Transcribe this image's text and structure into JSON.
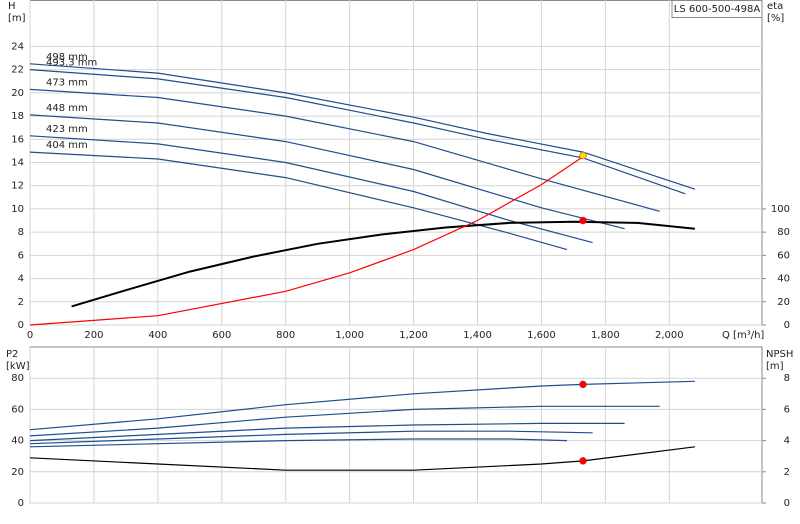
{
  "chart_data": [
    {
      "type": "line",
      "title": "LS 600-500-498A",
      "xlabel": "Q [m³/h]",
      "ylabel": "H",
      "yunit": "[m]",
      "y2label": "eta",
      "y2unit": "[%]",
      "xlim": [
        0,
        2290
      ],
      "xticks": [
        0,
        200,
        400,
        600,
        800,
        {
          "value": 1000,
          "label": "1,000"
        },
        {
          "value": 1200,
          "label": "1,200"
        },
        {
          "value": 1400,
          "label": "1,400"
        },
        {
          "value": 1600,
          "label": "1,600"
        },
        {
          "value": 1800,
          "label": "1,800"
        },
        {
          "value": 2000,
          "label": "2,000"
        }
      ],
      "ylim": [
        0,
        28
      ],
      "yticks": [
        0,
        2,
        4,
        6,
        8,
        10,
        12,
        14,
        16,
        18,
        20,
        22,
        24
      ],
      "y2lim": [
        0,
        280
      ],
      "y2ticks": [
        0,
        20,
        40,
        60,
        80,
        100
      ],
      "grid": true,
      "series": [
        {
          "name": "498 mm",
          "color": "#1f4e8c",
          "x": [
            0,
            400,
            800,
            1200,
            1430,
            1730,
            2080
          ],
          "values": [
            22.5,
            21.7,
            20.0,
            17.9,
            16.5,
            14.9,
            11.7
          ]
        },
        {
          "name": "493.3 mm",
          "color": "#1f4e8c",
          "x": [
            0,
            400,
            800,
            1200,
            1430,
            1730,
            2050
          ],
          "values": [
            22.0,
            21.2,
            19.6,
            17.4,
            16.0,
            14.4,
            11.3
          ]
        },
        {
          "name": "473 mm",
          "color": "#1f4e8c",
          "x": [
            0,
            400,
            800,
            1200,
            1600,
            1970
          ],
          "values": [
            20.3,
            19.6,
            18.0,
            15.8,
            12.6,
            9.8
          ]
        },
        {
          "name": "448 mm",
          "color": "#1f4e8c",
          "x": [
            0,
            400,
            800,
            1200,
            1600,
            1860
          ],
          "values": [
            18.1,
            17.4,
            15.8,
            13.4,
            10.1,
            8.3
          ]
        },
        {
          "name": "423 mm",
          "color": "#1f4e8c",
          "x": [
            0,
            400,
            800,
            1200,
            1500,
            1760
          ],
          "values": [
            16.3,
            15.6,
            14.0,
            11.5,
            9.0,
            7.1
          ]
        },
        {
          "name": "404 mm",
          "color": "#1f4e8c",
          "x": [
            0,
            400,
            800,
            1200,
            1500,
            1680
          ],
          "values": [
            14.9,
            14.3,
            12.7,
            10.1,
            7.9,
            6.5
          ]
        },
        {
          "color": "#000000",
          "axis": "y2",
          "x": [
            130,
            300,
            500,
            700,
            900,
            1100,
            1300,
            1500,
            1700,
            1900,
            2080
          ],
          "values": [
            16,
            30,
            46,
            59,
            70,
            78,
            84,
            88,
            89,
            88,
            83
          ]
        },
        {
          "color": "#ff0000",
          "x": [
            0,
            400,
            800,
            1000,
            1200,
            1400,
            1600,
            1730
          ],
          "values": [
            0,
            0.8,
            2.9,
            4.5,
            6.5,
            9.0,
            12.1,
            14.5
          ]
        }
      ],
      "points": [
        {
          "x": 1730,
          "y": 14.6,
          "color": "#ffd700"
        },
        {
          "x": 1730,
          "y": 90,
          "axis": "y2",
          "color": "#ff0000"
        }
      ]
    },
    {
      "type": "line",
      "ylabel": "P2",
      "yunit": "[kW]",
      "y2label": "NPSH",
      "y2unit": "[m]",
      "xlim": [
        0,
        2290
      ],
      "xticks": [
        0,
        200,
        400,
        600,
        800,
        1000,
        1200,
        1400,
        1600,
        1800,
        2000
      ],
      "ylim": [
        0,
        100
      ],
      "yticks": [
        0,
        20,
        40,
        60,
        80
      ],
      "y2lim": [
        0,
        10
      ],
      "y2ticks": [
        0,
        2,
        4,
        6,
        8
      ],
      "grid": true,
      "series": [
        {
          "color": "#1f4e8c",
          "x": [
            0,
            400,
            800,
            1200,
            1600,
            1730,
            2080
          ],
          "values": [
            47,
            54,
            63,
            70,
            75,
            76,
            78
          ]
        },
        {
          "color": "#1f4e8c",
          "x": [
            0,
            400,
            800,
            1200,
            1600,
            1970
          ],
          "values": [
            43,
            48,
            55,
            60,
            62,
            62
          ]
        },
        {
          "color": "#1f4e8c",
          "x": [
            0,
            400,
            800,
            1200,
            1600,
            1860
          ],
          "values": [
            40,
            44,
            48,
            50,
            51,
            51
          ]
        },
        {
          "color": "#1f4e8c",
          "x": [
            0,
            400,
            800,
            1200,
            1500,
            1760
          ],
          "values": [
            38,
            41,
            44,
            46,
            46,
            45
          ]
        },
        {
          "color": "#1f4e8c",
          "x": [
            0,
            400,
            800,
            1200,
            1500,
            1680
          ],
          "values": [
            36,
            38,
            40,
            41,
            41,
            40
          ]
        },
        {
          "color": "#000000",
          "axis": "y2",
          "x": [
            0,
            400,
            800,
            1200,
            1600,
            1730,
            2080
          ],
          "values": [
            2.9,
            2.5,
            2.1,
            2.1,
            2.5,
            2.7,
            3.6
          ]
        }
      ],
      "points": [
        {
          "x": 1730,
          "y": 76,
          "color": "#ff0000"
        },
        {
          "x": 1730,
          "y": 2.7,
          "axis": "y2",
          "color": "#ff0000"
        }
      ]
    }
  ]
}
